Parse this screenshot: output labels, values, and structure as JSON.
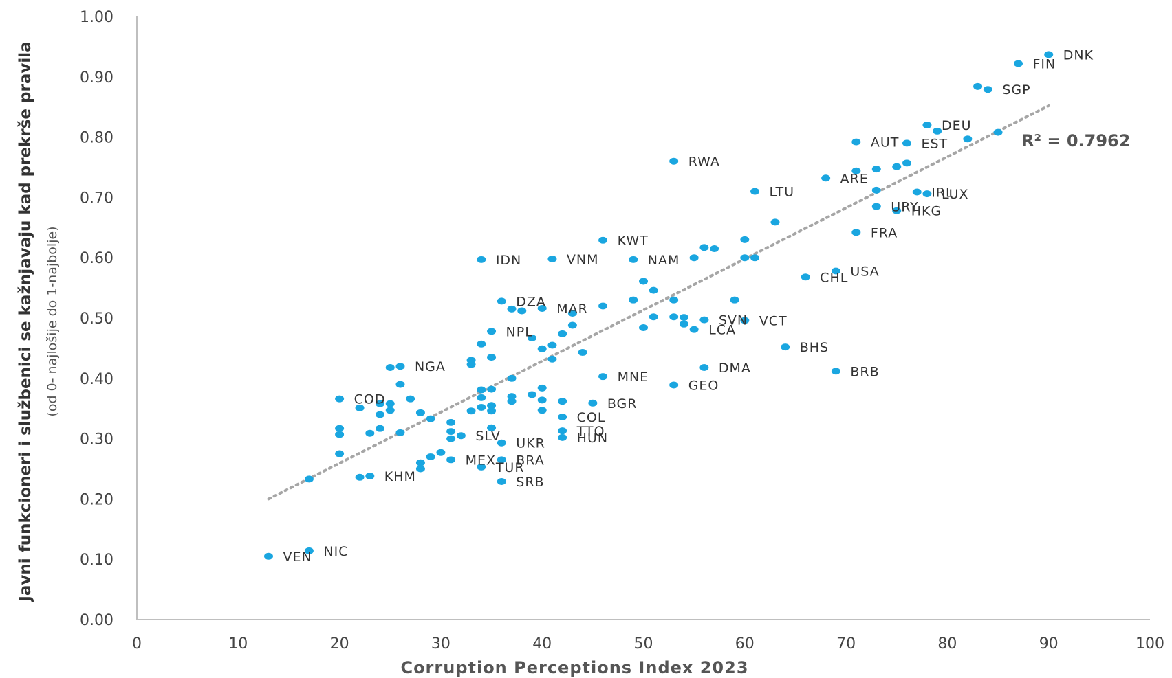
{
  "chart_data": {
    "type": "scatter",
    "xlabel": "Corruption Perceptions Index 2023",
    "ylabel": "Javni funkcioneri i službenici se kažnjavaju kad prekrše pravila",
    "ylabel_sub": "(od 0- najlošije do 1-najbolje)",
    "xlim": [
      0,
      100
    ],
    "ylim": [
      0,
      1
    ],
    "xticks": [
      0,
      10,
      20,
      30,
      40,
      50,
      60,
      70,
      80,
      90,
      100
    ],
    "yticks": [
      0,
      0.1,
      0.2,
      0.3,
      0.4,
      0.5,
      0.6,
      0.7,
      0.8,
      0.9,
      1.0
    ],
    "xtick_labels": [
      "0",
      "10",
      "20",
      "30",
      "40",
      "50",
      "60",
      "70",
      "80",
      "90",
      "100"
    ],
    "ytick_labels": [
      "0.00",
      "0.10",
      "0.20",
      "0.30",
      "0.40",
      "0.50",
      "0.60",
      "0.70",
      "0.80",
      "0.90",
      "1.00"
    ],
    "grid": false,
    "point_color": "#1aa6e0",
    "trend_color": "#a6a6a6",
    "trendline": {
      "label": "R² = 0.7962",
      "x": [
        13,
        90
      ],
      "y": [
        0.2,
        0.852
      ]
    },
    "points": [
      {
        "x": 90,
        "y": 0.937,
        "label": "DNK"
      },
      {
        "x": 87,
        "y": 0.922,
        "label": "FIN"
      },
      {
        "x": 83,
        "y": 0.884,
        "label": ""
      },
      {
        "x": 84,
        "y": 0.879,
        "label": "SGP"
      },
      {
        "x": 78,
        "y": 0.82,
        "label": "DEU"
      },
      {
        "x": 79,
        "y": 0.81,
        "label": ""
      },
      {
        "x": 71,
        "y": 0.792,
        "label": "AUT"
      },
      {
        "x": 76,
        "y": 0.79,
        "label": "EST"
      },
      {
        "x": 82,
        "y": 0.797,
        "label": ""
      },
      {
        "x": 85,
        "y": 0.808,
        "label": ""
      },
      {
        "x": 53,
        "y": 0.76,
        "label": "RWA"
      },
      {
        "x": 76,
        "y": 0.757,
        "label": ""
      },
      {
        "x": 75,
        "y": 0.751,
        "label": ""
      },
      {
        "x": 73,
        "y": 0.747,
        "label": ""
      },
      {
        "x": 71,
        "y": 0.744,
        "label": ""
      },
      {
        "x": 68,
        "y": 0.732,
        "label": "ARE"
      },
      {
        "x": 61,
        "y": 0.71,
        "label": "LTU"
      },
      {
        "x": 73,
        "y": 0.712,
        "label": ""
      },
      {
        "x": 77,
        "y": 0.709,
        "label": "IRL"
      },
      {
        "x": 78,
        "y": 0.706,
        "label": "LUX"
      },
      {
        "x": 73,
        "y": 0.685,
        "label": "URY"
      },
      {
        "x": 75,
        "y": 0.678,
        "label": "HKG"
      },
      {
        "x": 63,
        "y": 0.659,
        "label": ""
      },
      {
        "x": 71,
        "y": 0.642,
        "label": "FRA"
      },
      {
        "x": 46,
        "y": 0.629,
        "label": "KWT"
      },
      {
        "x": 60,
        "y": 0.63,
        "label": ""
      },
      {
        "x": 56,
        "y": 0.617,
        "label": ""
      },
      {
        "x": 57,
        "y": 0.615,
        "label": ""
      },
      {
        "x": 34,
        "y": 0.597,
        "label": "IDN"
      },
      {
        "x": 41,
        "y": 0.598,
        "label": "VNM"
      },
      {
        "x": 49,
        "y": 0.597,
        "label": "NAM"
      },
      {
        "x": 55,
        "y": 0.6,
        "label": ""
      },
      {
        "x": 60,
        "y": 0.6,
        "label": ""
      },
      {
        "x": 61,
        "y": 0.6,
        "label": ""
      },
      {
        "x": 69,
        "y": 0.578,
        "label": "USA"
      },
      {
        "x": 66,
        "y": 0.568,
        "label": "CHL"
      },
      {
        "x": 50,
        "y": 0.561,
        "label": ""
      },
      {
        "x": 51,
        "y": 0.546,
        "label": ""
      },
      {
        "x": 36,
        "y": 0.528,
        "label": "DZA"
      },
      {
        "x": 49,
        "y": 0.53,
        "label": ""
      },
      {
        "x": 53,
        "y": 0.53,
        "label": ""
      },
      {
        "x": 59,
        "y": 0.53,
        "label": ""
      },
      {
        "x": 46,
        "y": 0.52,
        "label": ""
      },
      {
        "x": 37,
        "y": 0.515,
        "label": ""
      },
      {
        "x": 38,
        "y": 0.512,
        "label": ""
      },
      {
        "x": 40,
        "y": 0.516,
        "label": "MAR"
      },
      {
        "x": 43,
        "y": 0.508,
        "label": ""
      },
      {
        "x": 51,
        "y": 0.502,
        "label": ""
      },
      {
        "x": 53,
        "y": 0.502,
        "label": ""
      },
      {
        "x": 54,
        "y": 0.501,
        "label": ""
      },
      {
        "x": 56,
        "y": 0.497,
        "label": "SVN"
      },
      {
        "x": 60,
        "y": 0.496,
        "label": "VCT"
      },
      {
        "x": 54,
        "y": 0.49,
        "label": ""
      },
      {
        "x": 43,
        "y": 0.488,
        "label": ""
      },
      {
        "x": 50,
        "y": 0.484,
        "label": ""
      },
      {
        "x": 55,
        "y": 0.481,
        "label": "LCA"
      },
      {
        "x": 35,
        "y": 0.478,
        "label": "NPL"
      },
      {
        "x": 42,
        "y": 0.474,
        "label": ""
      },
      {
        "x": 39,
        "y": 0.467,
        "label": ""
      },
      {
        "x": 34,
        "y": 0.457,
        "label": ""
      },
      {
        "x": 41,
        "y": 0.455,
        "label": ""
      },
      {
        "x": 40,
        "y": 0.449,
        "label": ""
      },
      {
        "x": 64,
        "y": 0.452,
        "label": "BHS"
      },
      {
        "x": 44,
        "y": 0.443,
        "label": ""
      },
      {
        "x": 35,
        "y": 0.435,
        "label": ""
      },
      {
        "x": 33,
        "y": 0.43,
        "label": ""
      },
      {
        "x": 41,
        "y": 0.432,
        "label": ""
      },
      {
        "x": 33,
        "y": 0.423,
        "label": ""
      },
      {
        "x": 26,
        "y": 0.42,
        "label": "NGA"
      },
      {
        "x": 25,
        "y": 0.418,
        "label": ""
      },
      {
        "x": 56,
        "y": 0.418,
        "label": "DMA"
      },
      {
        "x": 69,
        "y": 0.412,
        "label": "BRB"
      },
      {
        "x": 46,
        "y": 0.403,
        "label": "MNE"
      },
      {
        "x": 37,
        "y": 0.4,
        "label": ""
      },
      {
        "x": 53,
        "y": 0.389,
        "label": "GEO"
      },
      {
        "x": 26,
        "y": 0.39,
        "label": ""
      },
      {
        "x": 40,
        "y": 0.384,
        "label": ""
      },
      {
        "x": 34,
        "y": 0.381,
        "label": ""
      },
      {
        "x": 35,
        "y": 0.382,
        "label": ""
      },
      {
        "x": 39,
        "y": 0.373,
        "label": ""
      },
      {
        "x": 20,
        "y": 0.366,
        "label": "COD"
      },
      {
        "x": 27,
        "y": 0.366,
        "label": ""
      },
      {
        "x": 34,
        "y": 0.368,
        "label": ""
      },
      {
        "x": 37,
        "y": 0.37,
        "label": ""
      },
      {
        "x": 37,
        "y": 0.362,
        "label": ""
      },
      {
        "x": 40,
        "y": 0.364,
        "label": ""
      },
      {
        "x": 42,
        "y": 0.362,
        "label": ""
      },
      {
        "x": 24,
        "y": 0.358,
        "label": ""
      },
      {
        "x": 25,
        "y": 0.358,
        "label": ""
      },
      {
        "x": 45,
        "y": 0.359,
        "label": "BGR"
      },
      {
        "x": 22,
        "y": 0.351,
        "label": ""
      },
      {
        "x": 34,
        "y": 0.352,
        "label": ""
      },
      {
        "x": 35,
        "y": 0.355,
        "label": ""
      },
      {
        "x": 25,
        "y": 0.347,
        "label": ""
      },
      {
        "x": 33,
        "y": 0.346,
        "label": ""
      },
      {
        "x": 35,
        "y": 0.346,
        "label": ""
      },
      {
        "x": 40,
        "y": 0.347,
        "label": ""
      },
      {
        "x": 28,
        "y": 0.343,
        "label": ""
      },
      {
        "x": 24,
        "y": 0.34,
        "label": ""
      },
      {
        "x": 42,
        "y": 0.336,
        "label": "COL"
      },
      {
        "x": 29,
        "y": 0.333,
        "label": ""
      },
      {
        "x": 31,
        "y": 0.327,
        "label": ""
      },
      {
        "x": 20,
        "y": 0.317,
        "label": ""
      },
      {
        "x": 24,
        "y": 0.317,
        "label": ""
      },
      {
        "x": 35,
        "y": 0.318,
        "label": ""
      },
      {
        "x": 31,
        "y": 0.312,
        "label": ""
      },
      {
        "x": 42,
        "y": 0.313,
        "label": "TTO"
      },
      {
        "x": 26,
        "y": 0.31,
        "label": ""
      },
      {
        "x": 20,
        "y": 0.307,
        "label": ""
      },
      {
        "x": 23,
        "y": 0.309,
        "label": ""
      },
      {
        "x": 32,
        "y": 0.305,
        "label": "SLV"
      },
      {
        "x": 31,
        "y": 0.3,
        "label": ""
      },
      {
        "x": 42,
        "y": 0.302,
        "label": "HUN"
      },
      {
        "x": 36,
        "y": 0.293,
        "label": "UKR"
      },
      {
        "x": 30,
        "y": 0.277,
        "label": ""
      },
      {
        "x": 20,
        "y": 0.275,
        "label": ""
      },
      {
        "x": 29,
        "y": 0.27,
        "label": ""
      },
      {
        "x": 31,
        "y": 0.265,
        "label": "MEX"
      },
      {
        "x": 36,
        "y": 0.265,
        "label": "BRA"
      },
      {
        "x": 28,
        "y": 0.26,
        "label": ""
      },
      {
        "x": 34,
        "y": 0.253,
        "label": "TUR"
      },
      {
        "x": 28,
        "y": 0.25,
        "label": ""
      },
      {
        "x": 22,
        "y": 0.236,
        "label": ""
      },
      {
        "x": 23,
        "y": 0.238,
        "label": "KHM"
      },
      {
        "x": 17,
        "y": 0.233,
        "label": ""
      },
      {
        "x": 36,
        "y": 0.229,
        "label": "SRB"
      },
      {
        "x": 17,
        "y": 0.114,
        "label": "NIC"
      },
      {
        "x": 13,
        "y": 0.105,
        "label": "VEN"
      }
    ]
  }
}
